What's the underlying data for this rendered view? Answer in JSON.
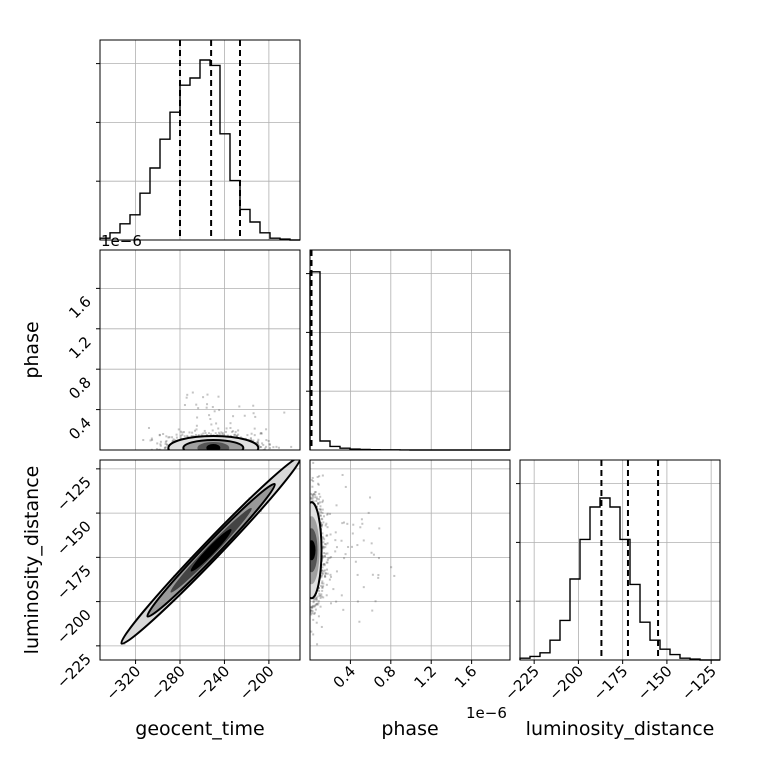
{
  "chart_data": {
    "type": "corner",
    "parameters": [
      "geocent_time",
      "phase",
      "luminosity_distance"
    ],
    "offset_labels": {
      "phase_y": "1e−6",
      "phase_x": "1e−6"
    },
    "ranges": {
      "geocent_time": [
        -352,
        -172
      ],
      "phase": [
        0,
        1.98
      ],
      "luminosity_distance": [
        -233,
        -120
      ]
    },
    "ticks": {
      "geocent_time": [
        -320,
        -280,
        -240,
        -200
      ],
      "phase": [
        0.4,
        0.8,
        1.2,
        1.6
      ],
      "luminosity_distance": [
        -225,
        -200,
        -175,
        -150,
        -125
      ]
    },
    "tick_labels": {
      "geocent_time": [
        "−320",
        "−280",
        "−240",
        "−200"
      ],
      "phase": [
        "0.4",
        "0.8",
        "1.2",
        "1.6"
      ],
      "luminosity_distance": [
        "−225",
        "−200",
        "−175",
        "−150",
        "−125"
      ]
    },
    "quantiles": {
      "geocent_time": [
        -280,
        -252,
        -226
      ],
      "phase": [
        0.015
      ],
      "luminosity_distance": [
        -187,
        -172,
        -155
      ]
    },
    "histograms": {
      "geocent_time": [
        0.01,
        0.04,
        0.09,
        0.14,
        0.26,
        0.4,
        0.56,
        0.71,
        0.86,
        0.9,
        1.0,
        0.97,
        0.59,
        0.33,
        0.17,
        0.1,
        0.04,
        0.01,
        0.005,
        0
      ],
      "phase": [
        0.99,
        0.05,
        0.02,
        0.01,
        0.005,
        0.003,
        0.002,
        0.001,
        0.001,
        0.0005,
        0,
        0,
        0,
        0,
        0,
        0,
        0,
        0,
        0,
        0
      ],
      "luminosity_distance": [
        0.01,
        0.02,
        0.04,
        0.11,
        0.22,
        0.45,
        0.67,
        0.85,
        0.9,
        0.85,
        0.67,
        0.42,
        0.21,
        0.11,
        0.06,
        0.03,
        0.01,
        0.005,
        0,
        0
      ]
    },
    "correlation_geocent_distance": 0.99,
    "grid": true,
    "histogram_color": "#000000",
    "quantile_style": "dashed"
  }
}
